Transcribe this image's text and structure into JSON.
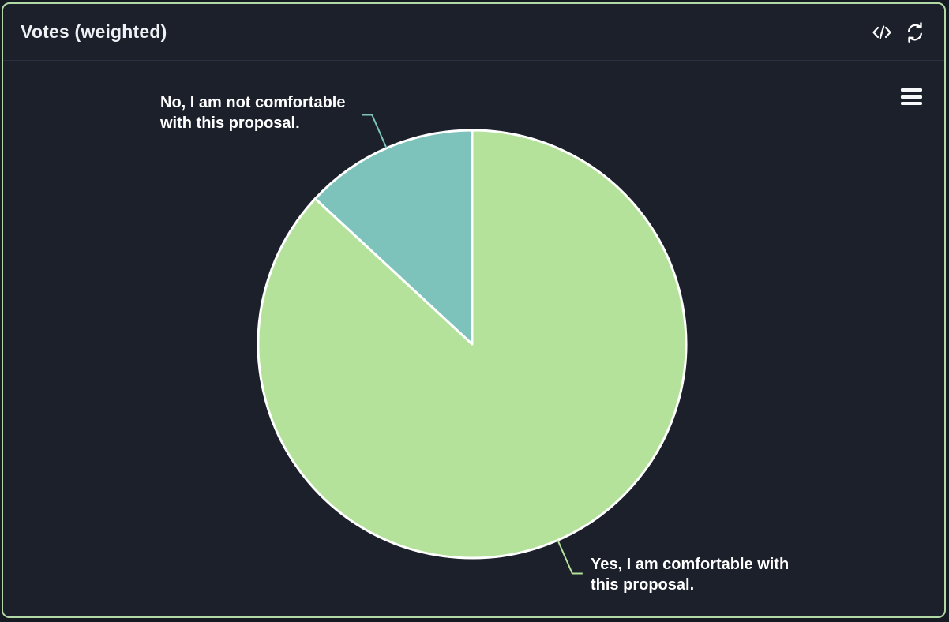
{
  "header": {
    "title": "Votes (weighted)"
  },
  "chart_data": {
    "type": "pie",
    "title": "Votes (weighted)",
    "legend": "none",
    "direction": "clockwise",
    "start_angle_deg": 0,
    "slice_border_color": "#ffffff",
    "background": "#1c202b",
    "slices": [
      {
        "name": "Yes, I am comfortable with this proposal.",
        "value": 86.9,
        "color": "#b5e29b",
        "label_lines": [
          "Yes, I am comfortable with",
          "this proposal."
        ]
      },
      {
        "name": "No, I am not comfortable with this proposal.",
        "value": 13.1,
        "color": "#7dc3bc",
        "label_lines": [
          "No, I am not comfortable",
          "with this proposal."
        ]
      }
    ]
  },
  "colors": {
    "panel_background": "#1c202b",
    "panel_border": "#b2d8a6",
    "header_divider": "#2a3040",
    "title_text": "#eef0f4",
    "label_text": "#ffffff"
  }
}
